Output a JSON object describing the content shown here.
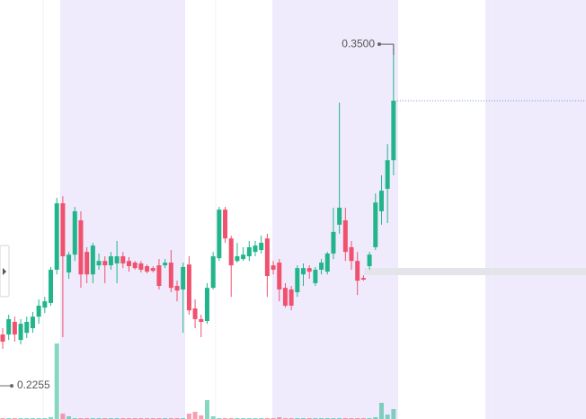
{
  "chart_data": {
    "type": "candlestick",
    "open": [
      0.2442,
      0.2442,
      0.2488,
      0.2422,
      0.2448,
      0.2465,
      0.2507,
      0.254,
      0.2557,
      0.2678,
      0.292,
      0.2668,
      0.2733,
      0.2858,
      0.2743,
      0.2661,
      0.2694,
      0.271,
      0.2694,
      0.2701,
      0.2727,
      0.271,
      0.2704,
      0.2701,
      0.2691,
      0.2684,
      0.2694,
      0.2694,
      0.2704,
      0.2619,
      0.2606,
      0.2697,
      0.2537,
      0.2498,
      0.2491,
      0.2612,
      0.272,
      0.2897,
      0.2792,
      0.271,
      0.2717,
      0.2727,
      0.2743,
      0.275,
      0.2792,
      0.2694,
      0.2704,
      0.2612,
      0.2606,
      0.2596,
      0.2661,
      0.2684,
      0.2629,
      0.2678,
      0.2671,
      0.2737,
      0.2842,
      0.2858,
      0.276,
      0.271,
      0.2648,
      0.2691,
      0.276,
      0.2891,
      0.2973,
      0.3077
    ],
    "high": [
      0.2465,
      0.2514,
      0.2507,
      0.2498,
      0.2507,
      0.2524,
      0.257,
      0.2579,
      0.2688,
      0.294,
      0.2946,
      0.2743,
      0.2907,
      0.2891,
      0.276,
      0.2776,
      0.2737,
      0.2727,
      0.2743,
      0.2783,
      0.2743,
      0.2724,
      0.271,
      0.271,
      0.2697,
      0.2691,
      0.2717,
      0.2717,
      0.275,
      0.2638,
      0.2704,
      0.2727,
      0.257,
      0.2514,
      0.2629,
      0.2743,
      0.2907,
      0.2907,
      0.2802,
      0.2776,
      0.276,
      0.2783,
      0.2783,
      0.2802,
      0.2809,
      0.271,
      0.2717,
      0.2629,
      0.2619,
      0.2694,
      0.2701,
      0.2694,
      0.2688,
      0.2717,
      0.2743,
      0.2904,
      0.3287,
      0.2904,
      0.2783,
      0.2743,
      0.2658,
      0.2743,
      0.2956,
      0.3022,
      0.3136,
      0.35
    ],
    "low": [
      0.239,
      0.2422,
      0.2416,
      0.2406,
      0.2429,
      0.2448,
      0.2481,
      0.252,
      0.2547,
      0.2661,
      0.2432,
      0.2645,
      0.271,
      0.2612,
      0.2629,
      0.2629,
      0.2678,
      0.2629,
      0.2678,
      0.2629,
      0.2684,
      0.2671,
      0.2678,
      0.2668,
      0.2665,
      0.2668,
      0.2606,
      0.2684,
      0.2596,
      0.2563,
      0.2448,
      0.2514,
      0.2465,
      0.2432,
      0.2481,
      0.2606,
      0.271,
      0.2776,
      0.2579,
      0.2704,
      0.271,
      0.271,
      0.2727,
      0.2737,
      0.2579,
      0.2661,
      0.2563,
      0.254,
      0.253,
      0.2579,
      0.2619,
      0.2645,
      0.2619,
      0.2661,
      0.2661,
      0.2717,
      0.2809,
      0.271,
      0.2678,
      0.2586,
      0.2638,
      0.2678,
      0.275,
      0.2842,
      0.2848,
      0.3022
    ],
    "close": [
      0.2416,
      0.2498,
      0.2442,
      0.2481,
      0.2488,
      0.2507,
      0.2547,
      0.2563,
      0.2678,
      0.292,
      0.2727,
      0.2733,
      0.2891,
      0.2661,
      0.2661,
      0.2766,
      0.271,
      0.2694,
      0.2727,
      0.2727,
      0.2701,
      0.2691,
      0.2684,
      0.2678,
      0.2671,
      0.2674,
      0.2619,
      0.2704,
      0.2612,
      0.2602,
      0.2688,
      0.253,
      0.2498,
      0.2488,
      0.2612,
      0.2727,
      0.2897,
      0.2792,
      0.2694,
      0.2727,
      0.2733,
      0.276,
      0.2766,
      0.2776,
      0.2655,
      0.2678,
      0.2606,
      0.2547,
      0.2547,
      0.2684,
      0.2684,
      0.2671,
      0.2678,
      0.2704,
      0.2737,
      0.2816,
      0.2904,
      0.2743,
      0.271,
      0.2638,
      0.2642,
      0.2733,
      0.2923,
      0.2966,
      0.3077,
      0.3294
    ],
    "volume": [
      1,
      1,
      1,
      1,
      1,
      1,
      1,
      1,
      2,
      84,
      6,
      3,
      1,
      1,
      1,
      1,
      1,
      1,
      1,
      1,
      1,
      1,
      1,
      1,
      1,
      1,
      1,
      1,
      1,
      1,
      1,
      6,
      8,
      4,
      21,
      3,
      1,
      1,
      1,
      1,
      1,
      1,
      1,
      1,
      1,
      1,
      2,
      1,
      1,
      1,
      1,
      1,
      1,
      1,
      1,
      1,
      1,
      1,
      1,
      1,
      1,
      1,
      2,
      18,
      5,
      11
    ],
    "up_color": "#22b58c",
    "down_color": "#f0516f",
    "ylim": [
      0.2134,
      0.3661
    ],
    "vlim": [
      0,
      100
    ],
    "annotations": [
      {
        "value": 0.35,
        "label": "0.3500"
      },
      {
        "value": 0.2255,
        "label": "0.2255"
      }
    ]
  }
}
